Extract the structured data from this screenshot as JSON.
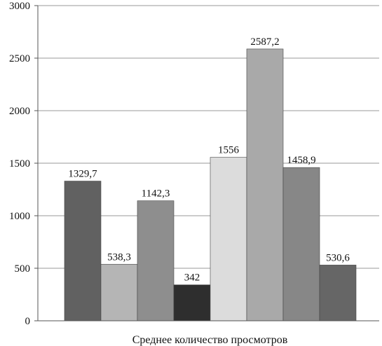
{
  "chart_data": {
    "type": "bar",
    "title": "",
    "xlabel": "Среднее количество просмотров",
    "ylabel": "",
    "ylim": [
      0,
      3000
    ],
    "yticks": [
      0,
      500,
      1000,
      1500,
      2000,
      2500,
      3000
    ],
    "grid": true,
    "legend": "none",
    "categories": [
      "Среднее количество просмотров"
    ],
    "series": [
      {
        "values": [
          1329.7
        ],
        "label": "1329,7",
        "color": "#616161"
      },
      {
        "values": [
          538.3
        ],
        "label": "538,3",
        "color": "#b5b5b5"
      },
      {
        "values": [
          1142.3
        ],
        "label": "1142,3",
        "color": "#8e8e8e"
      },
      {
        "values": [
          342
        ],
        "label": "342",
        "color": "#2e2e2e"
      },
      {
        "values": [
          1556
        ],
        "label": "1556",
        "color": "#dcdcdc"
      },
      {
        "values": [
          2587.2
        ],
        "label": "2587,2",
        "color": "#a9a9a9"
      },
      {
        "values": [
          1458.9
        ],
        "label": "1458,9",
        "color": "#878787"
      },
      {
        "values": [
          530.6
        ],
        "label": "530,6",
        "color": "#666666"
      }
    ]
  }
}
